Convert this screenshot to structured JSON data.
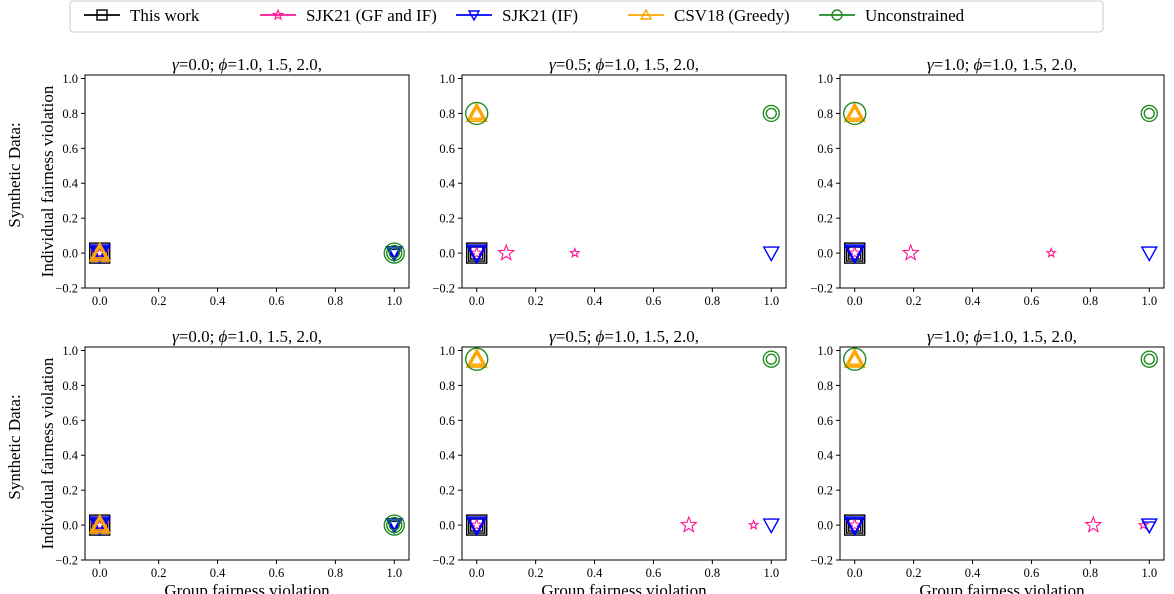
{
  "figure": {
    "row_labels": [
      "Synthetic Data:",
      "Synthetic Data:"
    ],
    "ylabel": "Individual fairness violation",
    "xlabel": "Group fairness violation"
  },
  "legend": [
    {
      "name": "This work",
      "color": "#000000",
      "marker": "square"
    },
    {
      "name": "SJK21 (GF and IF)",
      "color": "#ff1493",
      "marker": "star"
    },
    {
      "name": "SJK21 (IF)",
      "color": "#0000ff",
      "marker": "triangle-down"
    },
    {
      "name": "CSV18 (Greedy)",
      "color": "#ffa500",
      "marker": "triangle-up"
    },
    {
      "name": "Unconstrained",
      "color": "#228b22",
      "marker": "circle"
    }
  ],
  "chart_data": [
    {
      "type": "scatter",
      "title": "γ=0.0; ϕ=1.0, 1.5, 2.0,",
      "xlim": [
        -0.05,
        1.05
      ],
      "ylim": [
        -0.2,
        1.02
      ],
      "xticks": [
        "0.0",
        "0.2",
        "0.4",
        "0.6",
        "0.8",
        "1.0"
      ],
      "yticks": [
        "−0.2",
        "0.0",
        "0.2",
        "0.4",
        "0.6",
        "0.8",
        "1.0"
      ],
      "xlabel": "",
      "ylabel": "Individual fairness violation",
      "series": [
        {
          "name": "This work",
          "points": [
            [
              0,
              0,
              1.0
            ],
            [
              0,
              0,
              0.8
            ],
            [
              0,
              0,
              0.6
            ]
          ]
        },
        {
          "name": "SJK21 (GF and IF)",
          "points": [
            [
              0,
              0,
              0.9
            ],
            [
              0,
              0,
              0.7
            ],
            [
              0,
              0,
              0.5
            ]
          ]
        },
        {
          "name": "SJK21 (IF)",
          "points": [
            [
              0,
              0,
              1.0
            ],
            [
              0,
              0,
              0.8
            ],
            [
              0,
              0,
              0.6
            ],
            [
              1,
              0,
              0.8
            ],
            [
              1,
              0,
              0.6
            ],
            [
              1,
              0,
              0.45
            ]
          ]
        },
        {
          "name": "CSV18 (Greedy)",
          "points": [
            [
              0,
              0,
              1.0
            ],
            [
              0,
              0,
              0.8
            ],
            [
              0,
              0,
              0.6
            ]
          ]
        },
        {
          "name": "Unconstrained",
          "points": [
            [
              1,
              0,
              1.0
            ],
            [
              1,
              0,
              0.75
            ],
            [
              1,
              0,
              0.5
            ]
          ]
        }
      ]
    },
    {
      "type": "scatter",
      "title": "γ=0.5; ϕ=1.0, 1.5, 2.0,",
      "xlim": [
        -0.05,
        1.05
      ],
      "ylim": [
        -0.2,
        1.02
      ],
      "xticks": [
        "0.0",
        "0.2",
        "0.4",
        "0.6",
        "0.8",
        "1.0"
      ],
      "yticks": [
        "−0.2",
        "0.0",
        "0.2",
        "0.4",
        "0.6",
        "0.8",
        "1.0"
      ],
      "xlabel": "",
      "ylabel": "",
      "series": [
        {
          "name": "This work",
          "points": [
            [
              0,
              0,
              1.0
            ],
            [
              0,
              0,
              0.8
            ],
            [
              0,
              0,
              0.6
            ]
          ]
        },
        {
          "name": "SJK21 (GF and IF)",
          "points": [
            [
              0.1,
              0,
              0.8
            ],
            [
              0.333,
              0,
              0.45
            ],
            [
              0,
              0,
              0.6
            ]
          ]
        },
        {
          "name": "SJK21 (IF)",
          "points": [
            [
              0,
              0,
              1.0
            ],
            [
              0,
              0,
              0.8
            ],
            [
              1,
              0,
              0.75
            ]
          ]
        },
        {
          "name": "CSV18 (Greedy)",
          "points": [
            [
              0,
              0.8,
              1.0
            ],
            [
              0,
              0.8,
              0.8
            ],
            [
              0,
              0.8,
              0.6
            ]
          ]
        },
        {
          "name": "Unconstrained",
          "points": [
            [
              0,
              0.8,
              1.1
            ],
            [
              1,
              0.8,
              0.8
            ],
            [
              1,
              0.8,
              0.5
            ]
          ]
        }
      ]
    },
    {
      "type": "scatter",
      "title": "γ=1.0; ϕ=1.0, 1.5, 2.0,",
      "xlim": [
        -0.05,
        1.05
      ],
      "ylim": [
        -0.2,
        1.02
      ],
      "xticks": [
        "0.0",
        "0.2",
        "0.4",
        "0.6",
        "0.8",
        "1.0"
      ],
      "yticks": [
        "−0.2",
        "0.0",
        "0.2",
        "0.4",
        "0.6",
        "0.8",
        "1.0"
      ],
      "xlabel": "",
      "ylabel": "",
      "series": [
        {
          "name": "This work",
          "points": [
            [
              0,
              0,
              1.0
            ],
            [
              0,
              0,
              0.8
            ],
            [
              0,
              0,
              0.6
            ]
          ]
        },
        {
          "name": "SJK21 (GF and IF)",
          "points": [
            [
              0.19,
              0,
              0.8
            ],
            [
              0.667,
              0,
              0.45
            ],
            [
              0,
              0,
              0.6
            ]
          ]
        },
        {
          "name": "SJK21 (IF)",
          "points": [
            [
              0,
              0,
              1.0
            ],
            [
              0,
              0,
              0.8
            ],
            [
              1,
              0,
              0.75
            ]
          ]
        },
        {
          "name": "CSV18 (Greedy)",
          "points": [
            [
              0,
              0.8,
              1.0
            ],
            [
              0,
              0.8,
              0.8
            ],
            [
              0,
              0.8,
              0.6
            ]
          ]
        },
        {
          "name": "Unconstrained",
          "points": [
            [
              0,
              0.8,
              1.1
            ],
            [
              1,
              0.8,
              0.8
            ],
            [
              1,
              0.8,
              0.5
            ]
          ]
        }
      ]
    },
    {
      "type": "scatter",
      "title": "γ=0.0; ϕ=1.0, 1.5, 2.0,",
      "xlim": [
        -0.05,
        1.05
      ],
      "ylim": [
        -0.2,
        1.02
      ],
      "xticks": [
        "0.0",
        "0.2",
        "0.4",
        "0.6",
        "0.8",
        "1.0"
      ],
      "yticks": [
        "−0.2",
        "0.0",
        "0.2",
        "0.4",
        "0.6",
        "0.8",
        "1.0"
      ],
      "xlabel": "Group fairness violation",
      "ylabel": "Individual fairness violation",
      "series": [
        {
          "name": "This work",
          "points": [
            [
              0,
              0,
              1.0
            ],
            [
              0,
              0,
              0.8
            ],
            [
              0,
              0,
              0.6
            ]
          ]
        },
        {
          "name": "SJK21 (GF and IF)",
          "points": [
            [
              0,
              0,
              0.9
            ],
            [
              0,
              0,
              0.7
            ],
            [
              0,
              0,
              0.5
            ]
          ]
        },
        {
          "name": "SJK21 (IF)",
          "points": [
            [
              0,
              0,
              1.0
            ],
            [
              0,
              0,
              0.8
            ],
            [
              0,
              0,
              0.6
            ],
            [
              1,
              0,
              0.8
            ],
            [
              1,
              0,
              0.6
            ],
            [
              1,
              0,
              0.45
            ]
          ]
        },
        {
          "name": "CSV18 (Greedy)",
          "points": [
            [
              0,
              0,
              1.0
            ],
            [
              0,
              0,
              0.8
            ],
            [
              0,
              0,
              0.6
            ]
          ]
        },
        {
          "name": "Unconstrained",
          "points": [
            [
              1,
              0,
              1.0
            ],
            [
              1,
              0,
              0.75
            ],
            [
              1,
              0,
              0.5
            ]
          ]
        }
      ]
    },
    {
      "type": "scatter",
      "title": "γ=0.5; ϕ=1.0, 1.5, 2.0,",
      "xlim": [
        -0.05,
        1.05
      ],
      "ylim": [
        -0.2,
        1.02
      ],
      "xticks": [
        "0.0",
        "0.2",
        "0.4",
        "0.6",
        "0.8",
        "1.0"
      ],
      "yticks": [
        "−0.2",
        "0.0",
        "0.2",
        "0.4",
        "0.6",
        "0.8",
        "1.0"
      ],
      "xlabel": "Group fairness violation",
      "ylabel": "",
      "series": [
        {
          "name": "This work",
          "points": [
            [
              0,
              0,
              1.0
            ],
            [
              0,
              0,
              0.8
            ],
            [
              0,
              0,
              0.6
            ]
          ]
        },
        {
          "name": "SJK21 (GF and IF)",
          "points": [
            [
              0.72,
              0,
              0.8
            ],
            [
              0.94,
              0,
              0.45
            ],
            [
              0,
              0,
              0.6
            ]
          ]
        },
        {
          "name": "SJK21 (IF)",
          "points": [
            [
              0,
              0,
              1.0
            ],
            [
              0,
              0,
              0.8
            ],
            [
              1,
              0,
              0.75
            ]
          ]
        },
        {
          "name": "CSV18 (Greedy)",
          "points": [
            [
              0,
              0.95,
              1.0
            ],
            [
              0,
              0.95,
              0.8
            ],
            [
              0,
              0.95,
              0.6
            ]
          ]
        },
        {
          "name": "Unconstrained",
          "points": [
            [
              0,
              0.95,
              1.1
            ],
            [
              1,
              0.95,
              0.8
            ],
            [
              1,
              0.95,
              0.5
            ]
          ]
        }
      ]
    },
    {
      "type": "scatter",
      "title": "γ=1.0; ϕ=1.0, 1.5, 2.0,",
      "xlim": [
        -0.05,
        1.05
      ],
      "ylim": [
        -0.2,
        1.02
      ],
      "xticks": [
        "0.0",
        "0.2",
        "0.4",
        "0.6",
        "0.8",
        "1.0"
      ],
      "yticks": [
        "−0.2",
        "0.0",
        "0.2",
        "0.4",
        "0.6",
        "0.8",
        "1.0"
      ],
      "xlabel": "Group fairness violation",
      "ylabel": "",
      "series": [
        {
          "name": "This work",
          "points": [
            [
              0,
              0,
              1.0
            ],
            [
              0,
              0,
              0.8
            ],
            [
              0,
              0,
              0.6
            ]
          ]
        },
        {
          "name": "SJK21 (GF and IF)",
          "points": [
            [
              0.81,
              0,
              0.8
            ],
            [
              0.98,
              0,
              0.45
            ],
            [
              0,
              0,
              0.6
            ]
          ]
        },
        {
          "name": "SJK21 (IF)",
          "points": [
            [
              0,
              0,
              1.0
            ],
            [
              0,
              0,
              0.8
            ],
            [
              1,
              0,
              0.75
            ],
            [
              1,
              -0.01,
              0.6
            ]
          ]
        },
        {
          "name": "CSV18 (Greedy)",
          "points": [
            [
              0,
              0.95,
              1.0
            ],
            [
              0,
              0.95,
              0.8
            ],
            [
              0,
              0.95,
              0.6
            ]
          ]
        },
        {
          "name": "Unconstrained",
          "points": [
            [
              0,
              0.95,
              1.1
            ],
            [
              1,
              0.95,
              0.8
            ],
            [
              1,
              0.95,
              0.5
            ]
          ]
        }
      ]
    }
  ]
}
